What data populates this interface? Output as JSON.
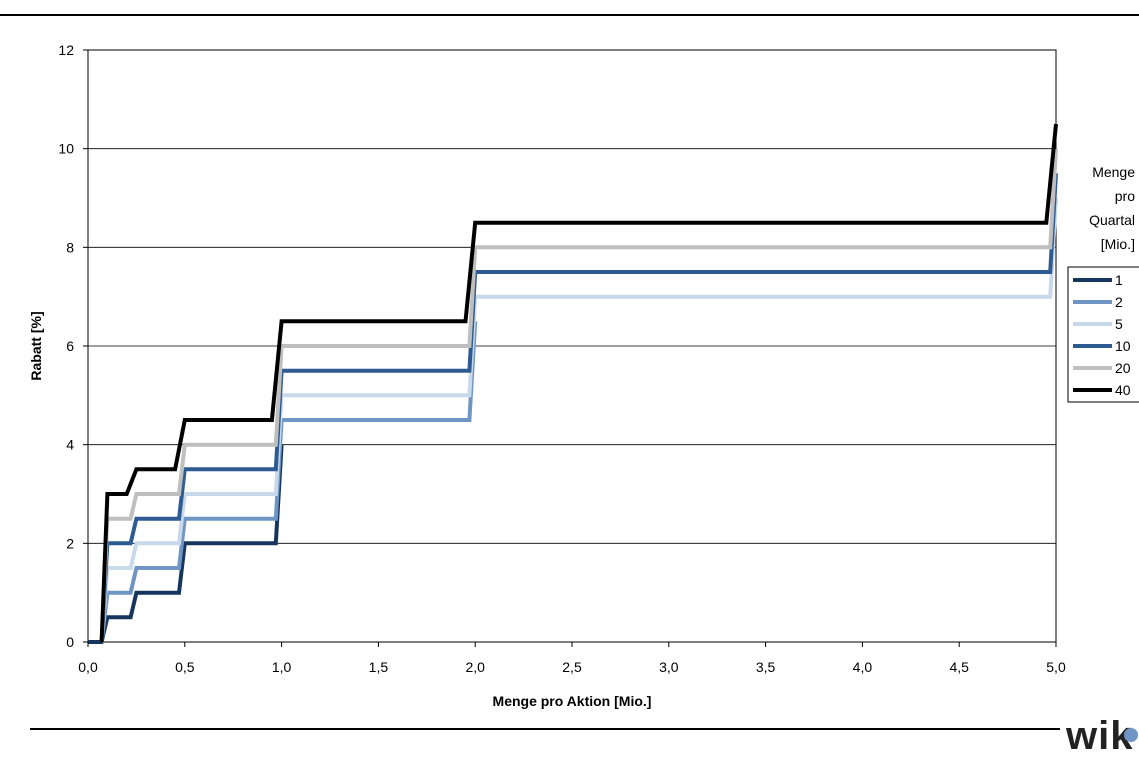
{
  "chart_data": {
    "type": "line",
    "title": "",
    "xlabel": "Menge pro Aktion [Mio.]",
    "ylabel": "Rabatt [%]",
    "xlim": [
      0,
      5.0
    ],
    "ylim": [
      0,
      12
    ],
    "xticks": [
      "0,0",
      "0,5",
      "1,0",
      "1,5",
      "2,0",
      "2,5",
      "3,0",
      "3,5",
      "4,0",
      "4,5",
      "5,0"
    ],
    "yticks": [
      "0",
      "2",
      "4",
      "6",
      "8",
      "10",
      "12"
    ],
    "grid": "horizontal",
    "legend_title": [
      "Menge",
      "pro",
      "Quartal",
      "[Mio.]"
    ],
    "legend_position": "right",
    "series": [
      {
        "name": "1",
        "color": "#17365d",
        "points": [
          [
            0.0,
            0
          ],
          [
            0.07,
            0
          ],
          [
            0.1,
            0.5
          ],
          [
            0.22,
            0.5
          ],
          [
            0.25,
            1
          ],
          [
            0.47,
            1
          ],
          [
            0.5,
            2
          ],
          [
            0.97,
            2
          ],
          [
            1.0,
            4
          ]
        ]
      },
      {
        "name": "2",
        "color": "#6f95c4",
        "points": [
          [
            0.07,
            0
          ],
          [
            0.1,
            1
          ],
          [
            0.22,
            1
          ],
          [
            0.25,
            1.5
          ],
          [
            0.47,
            1.5
          ],
          [
            0.5,
            2.5
          ],
          [
            0.97,
            2.5
          ],
          [
            1.0,
            4.5
          ],
          [
            1.97,
            4.5
          ],
          [
            2.0,
            6.5
          ]
        ]
      },
      {
        "name": "5",
        "color": "#c9d9ec",
        "points": [
          [
            0.07,
            0
          ],
          [
            0.1,
            1.5
          ],
          [
            0.22,
            1.5
          ],
          [
            0.25,
            2
          ],
          [
            0.47,
            2
          ],
          [
            0.5,
            3
          ],
          [
            0.97,
            3
          ],
          [
            1.0,
            5
          ],
          [
            1.97,
            5
          ],
          [
            2.0,
            7
          ],
          [
            4.97,
            7
          ],
          [
            5.0,
            9
          ]
        ]
      },
      {
        "name": "10",
        "color": "#2e5b91",
        "points": [
          [
            0.07,
            0
          ],
          [
            0.1,
            2
          ],
          [
            0.22,
            2
          ],
          [
            0.25,
            2.5
          ],
          [
            0.47,
            2.5
          ],
          [
            0.5,
            3.5
          ],
          [
            0.97,
            3.5
          ],
          [
            1.0,
            5.5
          ],
          [
            1.97,
            5.5
          ],
          [
            2.0,
            7.5
          ],
          [
            4.97,
            7.5
          ],
          [
            5.0,
            9.5
          ]
        ]
      },
      {
        "name": "20",
        "color": "#bfbfbf",
        "points": [
          [
            0.07,
            0
          ],
          [
            0.1,
            2.5
          ],
          [
            0.22,
            2.5
          ],
          [
            0.25,
            3
          ],
          [
            0.47,
            3
          ],
          [
            0.5,
            4
          ],
          [
            0.97,
            4
          ],
          [
            1.0,
            6
          ],
          [
            1.97,
            6
          ],
          [
            2.0,
            8
          ],
          [
            4.97,
            8
          ],
          [
            5.0,
            10
          ]
        ]
      },
      {
        "name": "40",
        "color": "#000000",
        "points": [
          [
            0.07,
            0
          ],
          [
            0.1,
            3
          ],
          [
            0.2,
            3
          ],
          [
            0.25,
            3.5
          ],
          [
            0.45,
            3.5
          ],
          [
            0.5,
            4.5
          ],
          [
            0.95,
            4.5
          ],
          [
            1.0,
            6.5
          ],
          [
            1.95,
            6.5
          ],
          [
            2.0,
            8.5
          ],
          [
            4.95,
            8.5
          ],
          [
            5.0,
            10.5
          ]
        ]
      }
    ]
  },
  "logo": {
    "text": "wik"
  }
}
